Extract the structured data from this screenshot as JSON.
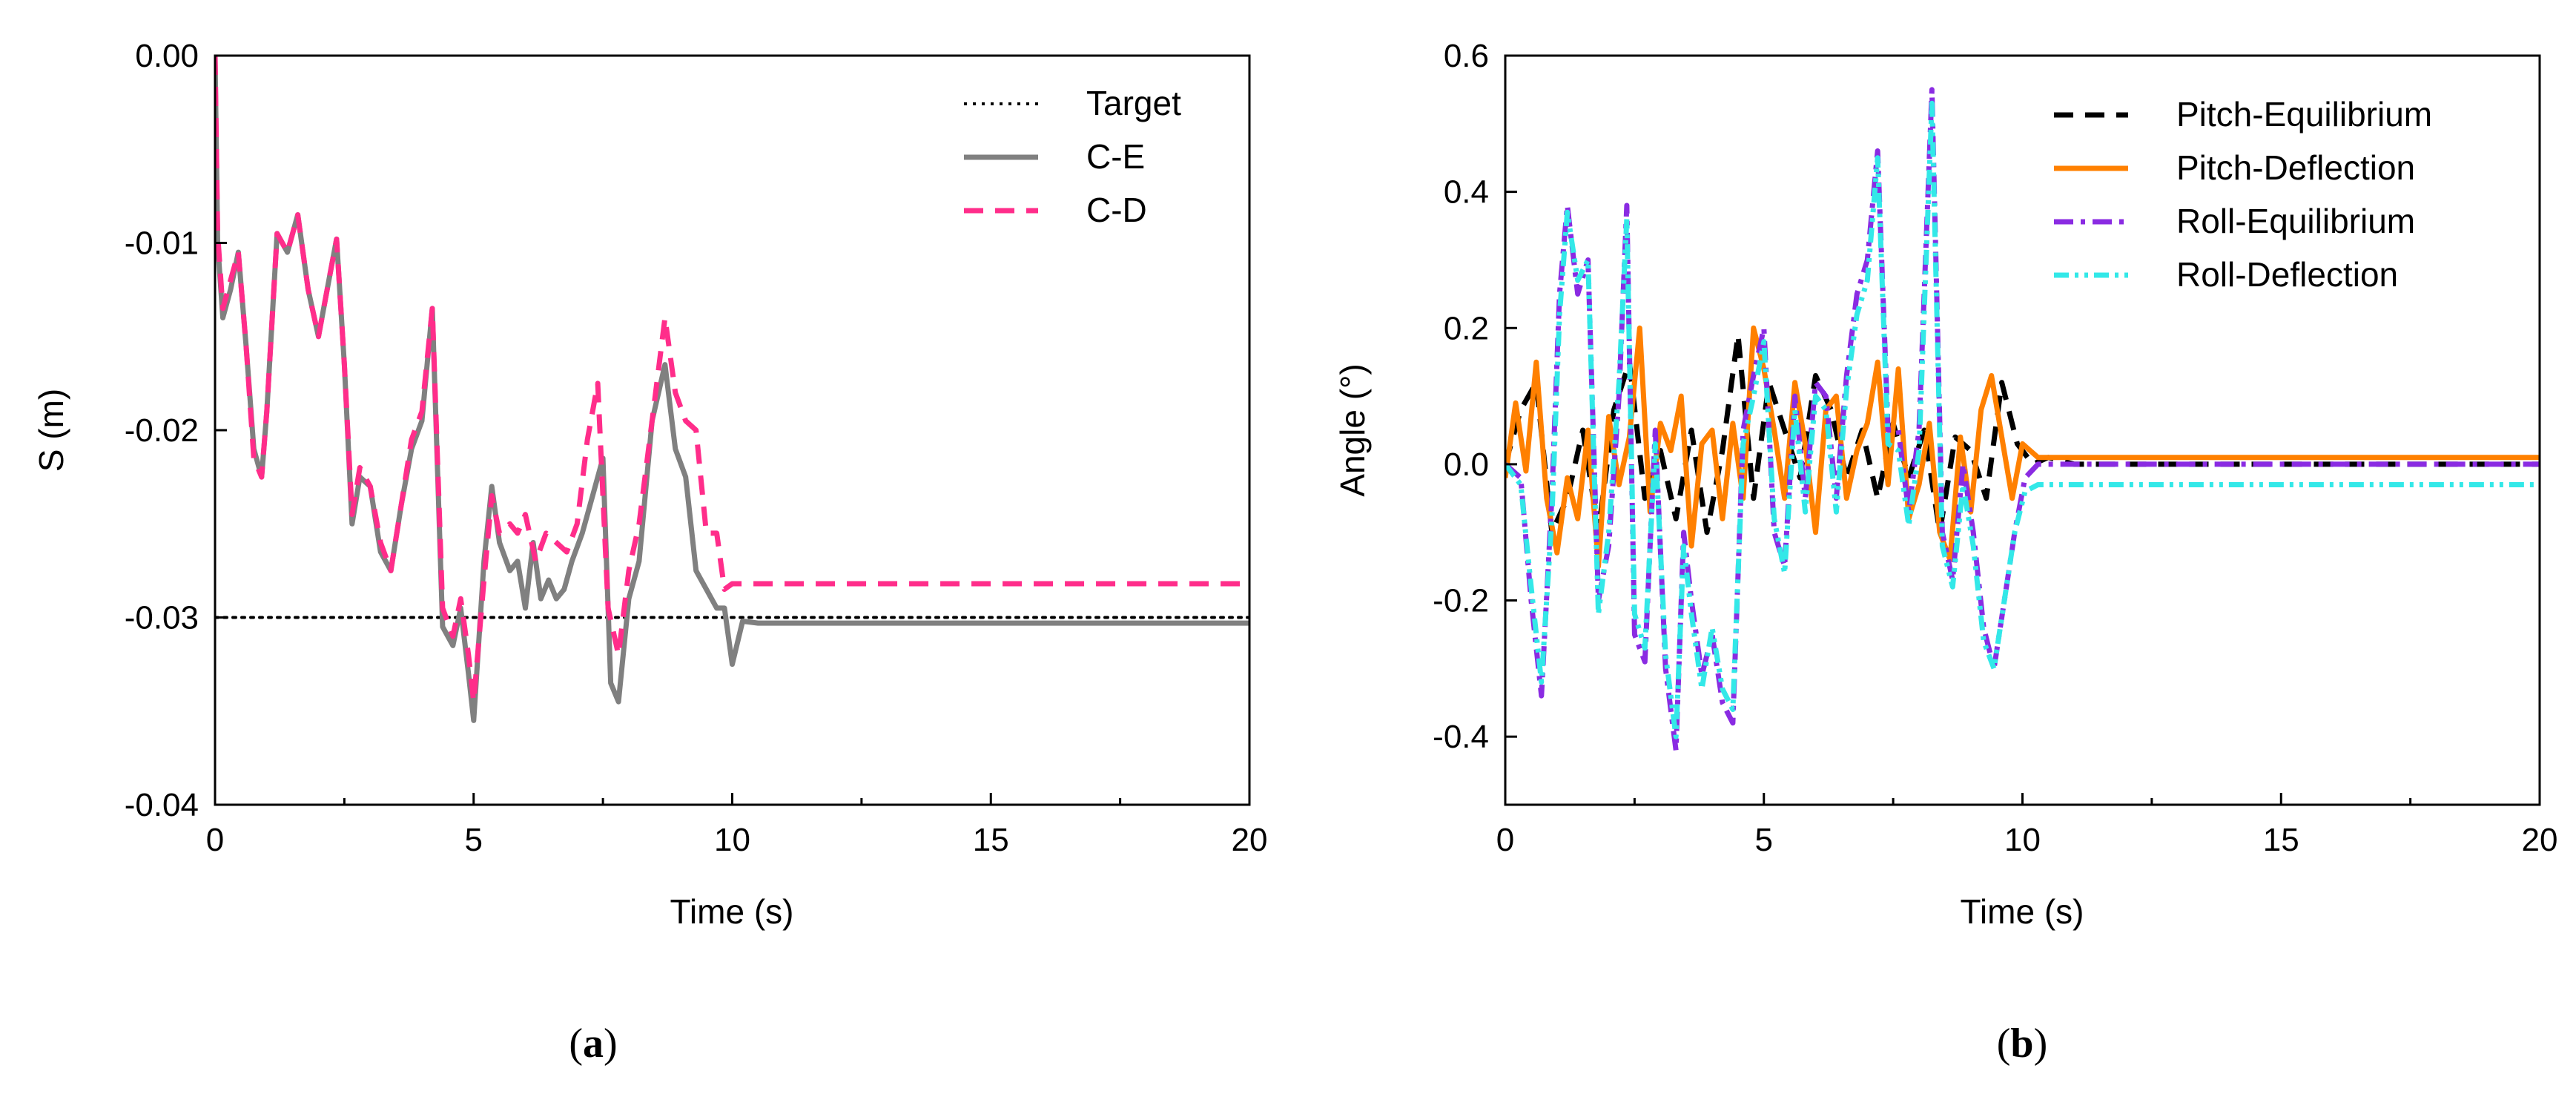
{
  "charts": [
    {
      "type": "line",
      "panel_label": "a",
      "title": "",
      "xlabel": "Time (s)",
      "ylabel": "S (m)",
      "xlim": [
        0,
        20
      ],
      "ylim": [
        -0.04,
        0.0
      ],
      "xticks": [
        0,
        5,
        10,
        15,
        20
      ],
      "xtick_labels": [
        "0",
        "5",
        "10",
        "15",
        "20"
      ],
      "yticks": [
        0.0,
        -0.01,
        -0.02,
        -0.03,
        -0.04
      ],
      "ytick_labels": [
        "0.00",
        "-0.01",
        "-0.02",
        "-0.03",
        "-0.04"
      ],
      "grid": false,
      "legend_position": "top-right",
      "series": [
        {
          "name": "Target",
          "color": "#000000",
          "style": "dotted",
          "x": [
            0,
            20
          ],
          "y": [
            -0.03,
            -0.03
          ]
        },
        {
          "name": "C-E",
          "color": "#808080",
          "style": "solid",
          "x": [
            0,
            0.05,
            0.15,
            0.3,
            0.45,
            0.6,
            0.75,
            0.9,
            1.0,
            1.2,
            1.4,
            1.6,
            1.8,
            2.0,
            2.2,
            2.35,
            2.5,
            2.65,
            2.8,
            3.0,
            3.2,
            3.4,
            3.6,
            3.8,
            4.0,
            4.2,
            4.4,
            4.6,
            4.75,
            4.9,
            5.0,
            5.2,
            5.35,
            5.5,
            5.7,
            5.85,
            6.0,
            6.15,
            6.3,
            6.45,
            6.6,
            6.75,
            6.9,
            7.1,
            7.3,
            7.5,
            7.65,
            7.8,
            8.0,
            8.2,
            8.45,
            8.7,
            8.9,
            9.1,
            9.3,
            9.5,
            9.7,
            9.85,
            10.0,
            10.2,
            10.5,
            11,
            12,
            13,
            14,
            15,
            16,
            17,
            18,
            19,
            20
          ],
          "y": [
            0,
            -0.01,
            -0.014,
            -0.0125,
            -0.0105,
            -0.0155,
            -0.021,
            -0.0225,
            -0.019,
            -0.0095,
            -0.0105,
            -0.0085,
            -0.0125,
            -0.015,
            -0.012,
            -0.0098,
            -0.0165,
            -0.025,
            -0.0225,
            -0.023,
            -0.0265,
            -0.0275,
            -0.024,
            -0.021,
            -0.0195,
            -0.0135,
            -0.0305,
            -0.0315,
            -0.0295,
            -0.033,
            -0.0355,
            -0.027,
            -0.023,
            -0.026,
            -0.0275,
            -0.027,
            -0.0295,
            -0.026,
            -0.029,
            -0.028,
            -0.029,
            -0.0285,
            -0.027,
            -0.0255,
            -0.0235,
            -0.0215,
            -0.0335,
            -0.0345,
            -0.029,
            -0.027,
            -0.0195,
            -0.0165,
            -0.021,
            -0.0225,
            -0.0275,
            -0.0285,
            -0.0295,
            -0.0295,
            -0.0325,
            -0.0302,
            -0.0303,
            -0.0303,
            -0.0303,
            -0.0303,
            -0.0303,
            -0.0303,
            -0.0303,
            -0.0303,
            -0.0303,
            -0.0303,
            -0.0303
          ]
        },
        {
          "name": "C-D",
          "color": "#ff2d8a",
          "style": "dashed",
          "x": [
            0,
            0.05,
            0.15,
            0.3,
            0.45,
            0.6,
            0.75,
            0.9,
            1.0,
            1.2,
            1.4,
            1.6,
            1.8,
            2.0,
            2.2,
            2.35,
            2.5,
            2.65,
            2.8,
            3.0,
            3.2,
            3.4,
            3.6,
            3.8,
            4.0,
            4.2,
            4.4,
            4.6,
            4.75,
            4.9,
            5.0,
            5.2,
            5.35,
            5.5,
            5.7,
            5.85,
            6.0,
            6.2,
            6.4,
            6.6,
            6.8,
            7.0,
            7.2,
            7.4,
            7.6,
            7.8,
            8.0,
            8.2,
            8.45,
            8.7,
            8.9,
            9.1,
            9.3,
            9.5,
            9.7,
            9.85,
            10.0,
            10.2,
            11,
            12,
            13,
            14,
            15,
            16,
            17,
            18,
            19,
            20
          ],
          "y": [
            0,
            -0.0095,
            -0.0135,
            -0.012,
            -0.0105,
            -0.0155,
            -0.0215,
            -0.0225,
            -0.019,
            -0.0095,
            -0.0105,
            -0.0085,
            -0.0125,
            -0.015,
            -0.012,
            -0.0098,
            -0.0165,
            -0.0245,
            -0.022,
            -0.023,
            -0.026,
            -0.0275,
            -0.024,
            -0.0205,
            -0.019,
            -0.0135,
            -0.0295,
            -0.031,
            -0.029,
            -0.032,
            -0.0345,
            -0.028,
            -0.0235,
            -0.0255,
            -0.025,
            -0.0255,
            -0.0245,
            -0.027,
            -0.0255,
            -0.026,
            -0.0265,
            -0.025,
            -0.0205,
            -0.0175,
            -0.0295,
            -0.032,
            -0.0275,
            -0.025,
            -0.0195,
            -0.014,
            -0.018,
            -0.0195,
            -0.02,
            -0.0255,
            -0.0255,
            -0.0285,
            -0.0282,
            -0.0282,
            -0.0282,
            -0.0282,
            -0.0282,
            -0.0282,
            -0.0282,
            -0.0282,
            -0.0282,
            -0.0282,
            -0.0282,
            -0.0282
          ]
        }
      ]
    },
    {
      "type": "line",
      "panel_label": "b",
      "title": "",
      "xlabel": "Time (s)",
      "ylabel": "Angle (°)",
      "xlim": [
        0,
        20
      ],
      "ylim": [
        -0.5,
        0.6
      ],
      "xticks": [
        0,
        5,
        10,
        15,
        20
      ],
      "xtick_labels": [
        "0",
        "5",
        "10",
        "15",
        "20"
      ],
      "yticks": [
        0.6,
        0.4,
        0.2,
        0.0,
        -0.2,
        -0.4
      ],
      "ytick_labels": [
        "0.6",
        "0.4",
        "0.2",
        "0.0",
        "-0.2",
        "-0.4"
      ],
      "grid": false,
      "legend_position": "top-right",
      "series": [
        {
          "name": "Pitch-Equilibrium",
          "color": "#000000",
          "style": "dashed",
          "x": [
            0,
            0.3,
            0.6,
            0.9,
            1.2,
            1.5,
            1.8,
            2.1,
            2.4,
            2.7,
            3.0,
            3.3,
            3.6,
            3.9,
            4.2,
            4.5,
            4.8,
            5.1,
            5.4,
            5.7,
            6.0,
            6.3,
            6.6,
            6.9,
            7.2,
            7.5,
            7.8,
            8.1,
            8.4,
            8.7,
            9.0,
            9.3,
            9.6,
            9.9,
            10.2,
            10.5,
            11,
            12,
            13,
            14,
            15,
            16,
            17,
            18,
            19,
            20
          ],
          "y": [
            0,
            0.08,
            0.12,
            -0.1,
            -0.05,
            0.05,
            -0.1,
            0.08,
            0.15,
            -0.05,
            0.02,
            -0.08,
            0.05,
            -0.1,
            0.02,
            0.19,
            -0.05,
            0.12,
            0.05,
            -0.02,
            0.13,
            0.08,
            -0.02,
            0.05,
            -0.05,
            0.06,
            -0.02,
            0.05,
            -0.1,
            0.04,
            0.02,
            -0.05,
            0.12,
            0.03,
            0.0,
            0.01,
            0.0,
            0.0,
            0.0,
            0.0,
            0.0,
            0.0,
            0.0,
            0.0,
            0.0,
            0.0
          ]
        },
        {
          "name": "Pitch-Deflection",
          "color": "#ff8000",
          "style": "solid",
          "x": [
            0,
            0.2,
            0.4,
            0.6,
            0.8,
            1.0,
            1.2,
            1.4,
            1.6,
            1.8,
            2.0,
            2.2,
            2.4,
            2.6,
            2.8,
            3.0,
            3.2,
            3.4,
            3.6,
            3.8,
            4.0,
            4.2,
            4.4,
            4.6,
            4.8,
            5.0,
            5.2,
            5.4,
            5.6,
            5.8,
            6.0,
            6.2,
            6.4,
            6.6,
            6.8,
            7.0,
            7.2,
            7.4,
            7.6,
            7.8,
            8.0,
            8.2,
            8.4,
            8.6,
            8.8,
            9.0,
            9.2,
            9.4,
            9.6,
            9.8,
            10.0,
            10.3,
            10.6,
            11,
            12,
            13,
            14,
            15,
            16,
            17,
            18,
            19,
            20
          ],
          "y": [
            -0.02,
            0.09,
            -0.01,
            0.15,
            -0.05,
            -0.13,
            -0.02,
            -0.08,
            0.05,
            -0.15,
            0.07,
            -0.03,
            0.04,
            0.2,
            -0.07,
            0.06,
            0.02,
            0.1,
            -0.12,
            0.03,
            0.05,
            -0.08,
            0.06,
            -0.05,
            0.2,
            0.14,
            0.05,
            -0.05,
            0.12,
            0.03,
            -0.1,
            0.08,
            0.1,
            -0.05,
            0.02,
            0.06,
            0.15,
            -0.03,
            0.14,
            -0.08,
            -0.03,
            0.06,
            -0.1,
            -0.14,
            0.04,
            -0.07,
            0.08,
            0.13,
            0.04,
            -0.05,
            0.03,
            0.01,
            0.01,
            0.01,
            0.01,
            0.01,
            0.01,
            0.01,
            0.01,
            0.01,
            0.01,
            0.01,
            0.01
          ]
        },
        {
          "name": "Roll-Equilibrium",
          "color": "#8a2be2",
          "style": "dashdot",
          "x": [
            0,
            0.3,
            0.5,
            0.7,
            0.9,
            1.05,
            1.2,
            1.4,
            1.6,
            1.8,
            2.0,
            2.2,
            2.35,
            2.5,
            2.7,
            2.9,
            3.1,
            3.3,
            3.45,
            3.6,
            3.8,
            4.0,
            4.2,
            4.4,
            4.6,
            4.8,
            5.0,
            5.2,
            5.4,
            5.6,
            5.8,
            6.0,
            6.2,
            6.4,
            6.6,
            6.8,
            7.0,
            7.2,
            7.4,
            7.6,
            7.8,
            8.0,
            8.25,
            8.45,
            8.65,
            8.85,
            9.05,
            9.25,
            9.45,
            9.65,
            9.85,
            10.05,
            10.3,
            11,
            12,
            13,
            14,
            15,
            16,
            17,
            18,
            19,
            20
          ],
          "y": [
            0,
            -0.02,
            -0.2,
            -0.34,
            -0.05,
            0.25,
            0.38,
            0.25,
            0.3,
            -0.2,
            -0.12,
            0.1,
            0.38,
            -0.25,
            -0.29,
            0.05,
            -0.3,
            -0.42,
            -0.1,
            -0.2,
            -0.31,
            -0.25,
            -0.35,
            -0.38,
            0.05,
            0.13,
            0.2,
            -0.1,
            -0.15,
            0.1,
            -0.05,
            0.12,
            0.1,
            -0.05,
            0.13,
            0.25,
            0.3,
            0.46,
            0.05,
            0.05,
            -0.07,
            0.05,
            0.55,
            -0.1,
            -0.17,
            0.0,
            -0.1,
            -0.24,
            -0.3,
            -0.2,
            -0.1,
            -0.02,
            0.0,
            0.0,
            0.0,
            0.0,
            0.0,
            0.0,
            0.0,
            0.0,
            0.0,
            0.0,
            0.0
          ]
        },
        {
          "name": "Roll-Deflection",
          "color": "#33e8e8",
          "style": "dashdotdot",
          "x": [
            0,
            0.3,
            0.5,
            0.7,
            0.9,
            1.05,
            1.2,
            1.4,
            1.6,
            1.8,
            2.0,
            2.2,
            2.35,
            2.5,
            2.7,
            2.9,
            3.1,
            3.3,
            3.45,
            3.6,
            3.8,
            4.0,
            4.2,
            4.4,
            4.6,
            4.8,
            5.0,
            5.2,
            5.4,
            5.6,
            5.8,
            6.0,
            6.2,
            6.4,
            6.6,
            6.8,
            7.0,
            7.2,
            7.4,
            7.6,
            7.8,
            8.0,
            8.25,
            8.45,
            8.65,
            8.85,
            9.05,
            9.25,
            9.45,
            9.65,
            9.85,
            10.05,
            10.3,
            11,
            12,
            13,
            14,
            15,
            16,
            17,
            18,
            19,
            20
          ],
          "y": [
            0,
            -0.03,
            -0.18,
            -0.32,
            -0.08,
            0.22,
            0.37,
            0.27,
            0.3,
            -0.22,
            -0.1,
            0.12,
            0.36,
            -0.22,
            -0.27,
            0.03,
            -0.28,
            -0.4,
            -0.12,
            -0.22,
            -0.33,
            -0.24,
            -0.33,
            -0.36,
            0.03,
            0.1,
            0.18,
            -0.08,
            -0.16,
            0.08,
            -0.07,
            0.1,
            0.08,
            -0.07,
            0.11,
            0.22,
            0.27,
            0.45,
            0.03,
            0.02,
            -0.09,
            0.02,
            0.53,
            -0.12,
            -0.18,
            -0.03,
            -0.12,
            -0.26,
            -0.3,
            -0.2,
            -0.1,
            -0.04,
            -0.03,
            -0.03,
            -0.03,
            -0.03,
            -0.03,
            -0.03,
            -0.03,
            -0.03,
            -0.03,
            -0.03,
            -0.03
          ]
        }
      ]
    }
  ]
}
